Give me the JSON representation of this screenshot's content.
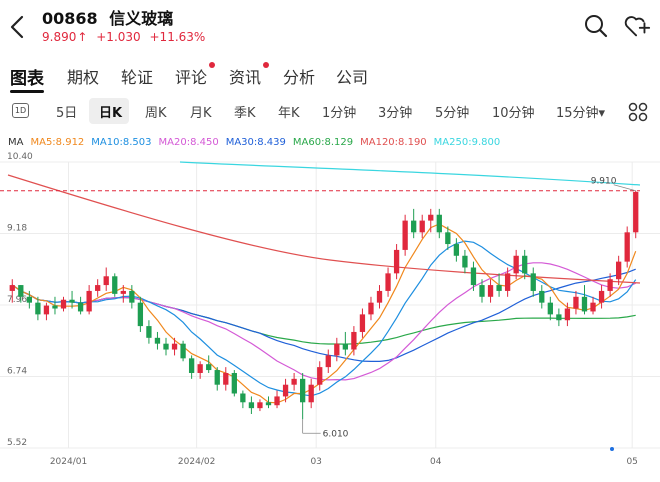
{
  "header": {
    "code": "00868",
    "name": "信义玻璃",
    "price": "9.890",
    "change": "+1.030",
    "change_pct": "+11.63%",
    "up_arrow": "↑"
  },
  "main_tabs": [
    {
      "label": "图表",
      "active": true,
      "dot": false
    },
    {
      "label": "期权",
      "active": false,
      "dot": false
    },
    {
      "label": "轮证",
      "active": false,
      "dot": false
    },
    {
      "label": "评论",
      "active": false,
      "dot": true
    },
    {
      "label": "资讯",
      "active": false,
      "dot": true
    },
    {
      "label": "分析",
      "active": false,
      "dot": false
    },
    {
      "label": "公司",
      "active": false,
      "dot": false
    }
  ],
  "periods": {
    "badge": "1D",
    "items": [
      "5日",
      "日K",
      "周K",
      "月K",
      "季K",
      "年K",
      "1分钟",
      "3分钟",
      "5分钟",
      "10分钟",
      "15分钟▾"
    ]
  },
  "ma_legend": [
    {
      "label": "MA",
      "color": "#333333"
    },
    {
      "label": "MA5:8.912",
      "color": "#f0881d"
    },
    {
      "label": "MA10:8.503",
      "color": "#1e8fe0"
    },
    {
      "label": "MA20:8.450",
      "color": "#d45ad6"
    },
    {
      "label": "MA30:8.439",
      "color": "#2060d8"
    },
    {
      "label": "MA60:8.129",
      "color": "#2aa84a"
    },
    {
      "label": "MA120:8.190",
      "color": "#e05050"
    },
    {
      "label": "MA250:9.800",
      "color": "#3ad6e0"
    }
  ],
  "chart_data": {
    "type": "candlestick",
    "y_ticks": [
      "10.40",
      "9.18",
      "7.96",
      "6.74",
      "5.52"
    ],
    "ylim": [
      5.52,
      10.4
    ],
    "x_ticks": [
      "2024/01",
      "2024/02",
      "03",
      "04",
      "05"
    ],
    "annotations": {
      "high": "9.910",
      "low": "6.010"
    },
    "colors": {
      "up": "#e0283d",
      "down": "#1e9e52"
    },
    "candles": [
      [
        8.2,
        8.4,
        8.0,
        8.3
      ],
      [
        8.3,
        8.3,
        8.0,
        8.1
      ],
      [
        8.1,
        8.2,
        7.9,
        8.0
      ],
      [
        8.0,
        8.1,
        7.7,
        7.8
      ],
      [
        7.8,
        8.0,
        7.7,
        7.95
      ],
      [
        7.95,
        8.1,
        7.8,
        7.9
      ],
      [
        7.9,
        8.1,
        7.85,
        8.05
      ],
      [
        8.05,
        8.2,
        7.9,
        8.0
      ],
      [
        8.0,
        8.1,
        7.8,
        7.85
      ],
      [
        7.85,
        8.3,
        7.8,
        8.2
      ],
      [
        8.2,
        8.4,
        8.1,
        8.3
      ],
      [
        8.3,
        8.6,
        8.2,
        8.45
      ],
      [
        8.45,
        8.5,
        8.1,
        8.15
      ],
      [
        8.15,
        8.3,
        8.0,
        8.2
      ],
      [
        8.2,
        8.3,
        7.9,
        8.0
      ],
      [
        8.0,
        8.1,
        7.5,
        7.6
      ],
      [
        7.6,
        7.7,
        7.3,
        7.4
      ],
      [
        7.4,
        7.5,
        7.2,
        7.3
      ],
      [
        7.3,
        7.4,
        7.1,
        7.2
      ],
      [
        7.2,
        7.4,
        7.1,
        7.3
      ],
      [
        7.3,
        7.35,
        7.0,
        7.05
      ],
      [
        7.05,
        7.1,
        6.7,
        6.8
      ],
      [
        6.8,
        7.0,
        6.7,
        6.95
      ],
      [
        6.95,
        7.1,
        6.8,
        6.85
      ],
      [
        6.85,
        6.9,
        6.5,
        6.6
      ],
      [
        6.6,
        6.9,
        6.5,
        6.8
      ],
      [
        6.8,
        6.85,
        6.4,
        6.45
      ],
      [
        6.45,
        6.5,
        6.2,
        6.3
      ],
      [
        6.3,
        6.4,
        6.1,
        6.2
      ],
      [
        6.2,
        6.35,
        6.15,
        6.3
      ],
      [
        6.3,
        6.4,
        6.2,
        6.25
      ],
      [
        6.25,
        6.5,
        6.2,
        6.4
      ],
      [
        6.4,
        6.7,
        6.3,
        6.6
      ],
      [
        6.6,
        6.8,
        6.5,
        6.7
      ],
      [
        6.7,
        6.8,
        6.01,
        6.3
      ],
      [
        6.3,
        6.7,
        6.2,
        6.6
      ],
      [
        6.6,
        7.0,
        6.5,
        6.9
      ],
      [
        6.9,
        7.2,
        6.8,
        7.1
      ],
      [
        7.1,
        7.4,
        7.0,
        7.3
      ],
      [
        7.3,
        7.5,
        7.1,
        7.2
      ],
      [
        7.2,
        7.6,
        7.1,
        7.5
      ],
      [
        7.5,
        7.9,
        7.4,
        7.8
      ],
      [
        7.8,
        8.1,
        7.7,
        8.0
      ],
      [
        8.0,
        8.3,
        7.9,
        8.2
      ],
      [
        8.2,
        8.6,
        8.1,
        8.5
      ],
      [
        8.5,
        9.0,
        8.4,
        8.9
      ],
      [
        8.9,
        9.5,
        8.8,
        9.4
      ],
      [
        9.4,
        9.6,
        9.1,
        9.2
      ],
      [
        9.2,
        9.5,
        9.1,
        9.4
      ],
      [
        9.4,
        9.6,
        9.2,
        9.5
      ],
      [
        9.5,
        9.6,
        9.1,
        9.2
      ],
      [
        9.2,
        9.3,
        8.9,
        9.0
      ],
      [
        9.0,
        9.1,
        8.7,
        8.8
      ],
      [
        8.8,
        8.9,
        8.5,
        8.6
      ],
      [
        8.6,
        8.7,
        8.2,
        8.3
      ],
      [
        8.3,
        8.4,
        8.0,
        8.1
      ],
      [
        8.1,
        8.4,
        8.0,
        8.3
      ],
      [
        8.3,
        8.5,
        8.1,
        8.2
      ],
      [
        8.2,
        8.6,
        8.1,
        8.5
      ],
      [
        8.5,
        8.9,
        8.4,
        8.8
      ],
      [
        8.8,
        8.9,
        8.4,
        8.5
      ],
      [
        8.5,
        8.6,
        8.1,
        8.2
      ],
      [
        8.2,
        8.3,
        7.9,
        8.0
      ],
      [
        8.0,
        8.1,
        7.7,
        7.8
      ],
      [
        7.8,
        7.9,
        7.6,
        7.7
      ],
      [
        7.7,
        8.0,
        7.6,
        7.9
      ],
      [
        7.9,
        8.2,
        7.8,
        8.1
      ],
      [
        8.1,
        8.3,
        7.8,
        7.85
      ],
      [
        7.85,
        8.1,
        7.8,
        8.0
      ],
      [
        8.0,
        8.3,
        7.9,
        8.2
      ],
      [
        8.2,
        8.5,
        8.1,
        8.4
      ],
      [
        8.4,
        8.8,
        8.3,
        8.7
      ],
      [
        8.7,
        9.3,
        8.6,
        9.2
      ],
      [
        9.2,
        9.91,
        9.1,
        9.89
      ]
    ]
  }
}
